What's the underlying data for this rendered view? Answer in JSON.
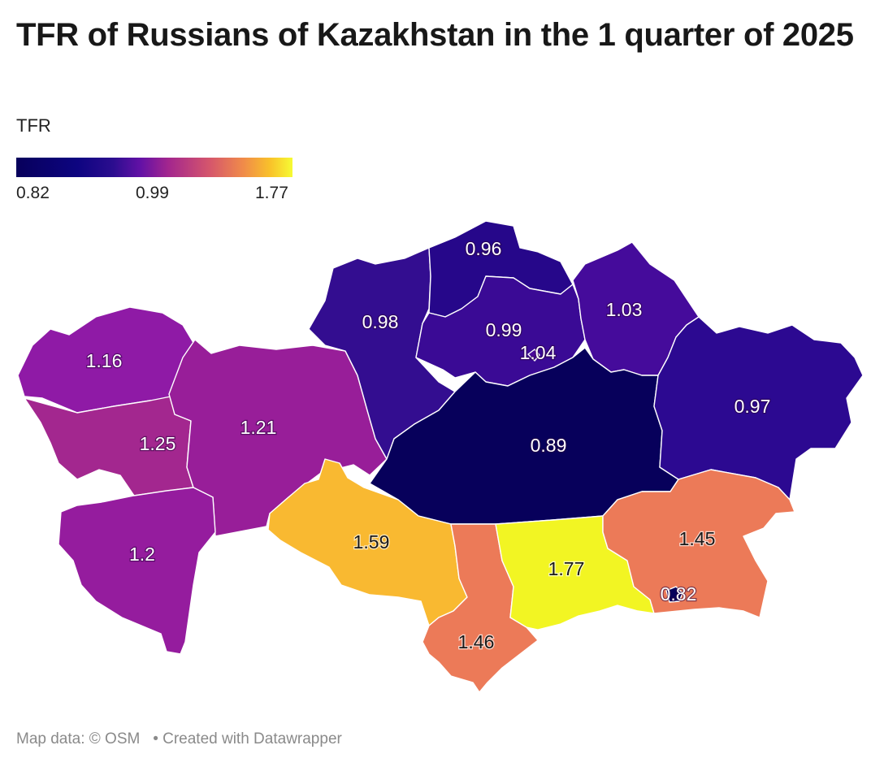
{
  "title": "TFR of Russians of Kazakhstan in the 1 quarter of 2025",
  "legend": {
    "title": "TFR",
    "min_label": "0.82",
    "mid_label": "0.99",
    "max_label": "1.77",
    "colors": [
      "#07005b",
      "#2b0d8f",
      "#6311a6",
      "#a3268e",
      "#f08a4a",
      "#f9c22a",
      "#f6fb34"
    ]
  },
  "regions": [
    {
      "label": "1.16",
      "value": 1.16,
      "color": "#8f1aa6"
    },
    {
      "label": "1.25",
      "value": 1.25,
      "color": "#a3278f"
    },
    {
      "label": "1.21",
      "value": 1.21,
      "color": "#981e99"
    },
    {
      "label": "1.2",
      "value": 1.2,
      "color": "#951c9e"
    },
    {
      "label": "0.98",
      "value": 0.98,
      "color": "#330d90"
    },
    {
      "label": "0.96",
      "value": 0.96,
      "color": "#26078a"
    },
    {
      "label": "0.99",
      "value": 0.99,
      "color": "#3a0a95"
    },
    {
      "label": "1.04",
      "value": 1.04,
      "color": "#4a0a9a"
    },
    {
      "label": "1.03",
      "value": 1.03,
      "color": "#450b9b"
    },
    {
      "label": "0.89",
      "value": 0.89,
      "color": "#07005b"
    },
    {
      "label": "0.97",
      "value": 0.97,
      "color": "#2c0991"
    },
    {
      "label": "1.59",
      "value": 1.59,
      "color": "#f9b931"
    },
    {
      "label": "1.46",
      "value": 1.46,
      "color": "#ec7a58"
    },
    {
      "label": "1.77",
      "value": 1.77,
      "color": "#f2f523"
    },
    {
      "label": "1.45",
      "value": 1.45,
      "color": "#ec7a58"
    },
    {
      "label": "0.82",
      "value": 0.82,
      "color": "#07005b"
    }
  ],
  "footer": {
    "source": "Map data: © OSM",
    "credit": "• Created with Datawrapper"
  }
}
